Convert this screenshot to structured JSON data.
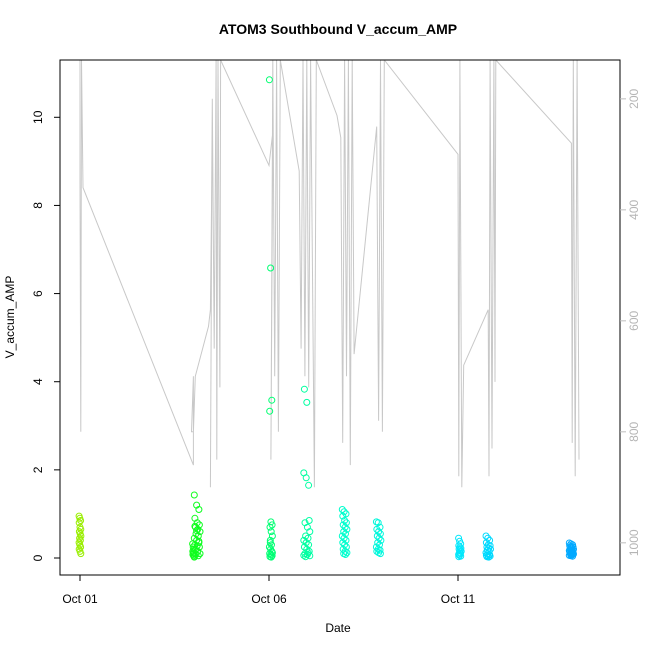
{
  "chart_data": {
    "type": "scatter",
    "title": "ATOM3 Southbound V_accum_AMP",
    "xlabel": "Date",
    "ylabel": "V_accum_AMP",
    "x_ticks": [
      "Oct 01",
      "Oct 06",
      "Oct 11"
    ],
    "x_tick_days": [
      1,
      6,
      11
    ],
    "xlim_days": [
      1,
      14.7
    ],
    "ylim": [
      0,
      11.3
    ],
    "y_ticks": [
      0,
      2,
      4,
      6,
      8,
      10
    ],
    "right_axis": {
      "ylim": [
        1058,
        130
      ],
      "ticks": [
        200,
        400,
        600,
        800,
        1000
      ],
      "inverted": true,
      "color": "#bdbdbd"
    },
    "grid": false,
    "legend": "none",
    "point_style": "open-circle",
    "point_color_gradient": [
      "#99ee00",
      "#00ff22",
      "#00ffcc",
      "#00e5ff",
      "#0099ff"
    ],
    "series": [
      {
        "type": "scatter",
        "clusters": [
          {
            "day": 1.0,
            "spread": 0.05,
            "y": [
              0.95,
              0.9,
              0.85,
              0.8,
              0.7,
              0.65,
              0.6,
              0.55,
              0.5,
              0.45,
              0.4,
              0.35,
              0.3,
              0.25,
              0.2,
              0.15,
              0.1
            ]
          },
          {
            "day": 4.0,
            "spread": 0.04,
            "y": [
              0.32,
              0.25,
              0.2,
              0.15,
              0.12,
              0.1,
              0.08,
              0.05,
              0.03
            ]
          },
          {
            "day": 4.1,
            "spread": 0.15,
            "y": [
              1.43,
              1.2,
              1.1,
              0.9,
              0.8,
              0.75,
              0.7,
              0.65,
              0.6,
              0.55,
              0.5,
              0.45,
              0.4,
              0.35,
              0.3,
              0.28,
              0.25,
              0.2,
              0.15,
              0.1,
              0.08,
              0.05,
              0.02,
              0.62,
              0.38,
              0.72
            ]
          },
          {
            "day": 6.05,
            "spread": 0.08,
            "y": [
              10.85,
              6.58,
              3.58,
              3.33,
              0.82,
              0.75,
              0.7,
              0.6,
              0.5,
              0.4,
              0.3,
              0.25,
              0.2,
              0.15,
              0.1,
              0.08,
              0.05,
              0.03,
              0.02,
              0.12,
              0.35
            ]
          },
          {
            "day": 7.0,
            "spread": 0.16,
            "y": [
              1.93,
              1.82,
              1.65,
              3.83,
              3.53,
              0.85,
              0.8,
              0.7,
              0.6,
              0.5,
              0.45,
              0.4,
              0.35,
              0.3,
              0.25,
              0.2,
              0.15,
              0.1,
              0.08,
              0.05,
              0.03,
              0.12,
              0.06
            ]
          },
          {
            "day": 8.0,
            "spread": 0.12,
            "y": [
              1.1,
              1.05,
              1.0,
              0.95,
              0.85,
              0.8,
              0.75,
              0.7,
              0.65,
              0.6,
              0.55,
              0.5,
              0.45,
              0.4,
              0.35,
              0.3,
              0.25,
              0.2,
              0.15,
              0.12,
              0.1,
              0.08
            ]
          },
          {
            "day": 8.9,
            "spread": 0.12,
            "y": [
              0.82,
              0.8,
              0.7,
              0.65,
              0.6,
              0.55,
              0.5,
              0.45,
              0.4,
              0.35,
              0.3,
              0.25,
              0.2,
              0.18,
              0.15,
              0.12,
              0.1
            ]
          },
          {
            "day": 11.05,
            "spread": 0.07,
            "y": [
              0.45,
              0.38,
              0.32,
              0.28,
              0.25,
              0.22,
              0.2,
              0.18,
              0.15,
              0.12,
              0.1,
              0.08,
              0.06,
              0.04,
              0.03
            ]
          },
          {
            "day": 11.8,
            "spread": 0.12,
            "y": [
              0.5,
              0.45,
              0.4,
              0.35,
              0.3,
              0.28,
              0.25,
              0.22,
              0.2,
              0.18,
              0.15,
              0.12,
              0.1,
              0.08,
              0.06,
              0.05,
              0.04,
              0.03,
              0.02
            ]
          },
          {
            "day": 14.0,
            "spread": 0.11,
            "y": [
              0.34,
              0.32,
              0.3,
              0.28,
              0.26,
              0.25,
              0.24,
              0.22,
              0.2,
              0.19,
              0.18,
              0.17,
              0.16,
              0.15,
              0.14,
              0.13,
              0.12,
              0.11,
              0.1,
              0.09,
              0.08,
              0.07,
              0.06,
              0.05,
              0.04
            ]
          }
        ]
      },
      {
        "type": "line",
        "color": "#c8c8c8",
        "axis": "right",
        "points": [
          [
            1.0,
            130
          ],
          [
            1.0,
            340
          ],
          [
            1.02,
            800
          ],
          [
            1.04,
            130
          ],
          [
            1.08,
            360
          ],
          [
            4.0,
            860
          ],
          [
            4.0,
            700
          ],
          [
            3.95,
            800
          ],
          [
            4.0,
            800
          ],
          [
            4.05,
            700
          ],
          [
            4.4,
            610
          ],
          [
            4.45,
            580
          ],
          [
            4.48,
            400
          ],
          [
            4.5,
            200
          ],
          [
            4.45,
            900
          ],
          [
            4.5,
            200
          ],
          [
            4.55,
            650
          ],
          [
            4.6,
            130
          ],
          [
            4.62,
            850
          ],
          [
            4.65,
            130
          ],
          [
            4.7,
            720
          ],
          [
            4.72,
            130
          ],
          [
            6.0,
            320
          ],
          [
            6.1,
            260
          ],
          [
            6.05,
            850
          ],
          [
            6.1,
            130
          ],
          [
            6.15,
            700
          ],
          [
            6.2,
            130
          ],
          [
            6.25,
            800
          ],
          [
            6.3,
            130
          ],
          [
            6.8,
            330
          ],
          [
            6.85,
            650
          ],
          [
            6.9,
            130
          ],
          [
            6.95,
            700
          ],
          [
            7.0,
            130
          ],
          [
            7.05,
            720
          ],
          [
            7.1,
            130
          ],
          [
            7.2,
            900
          ],
          [
            7.25,
            130
          ],
          [
            7.8,
            230
          ],
          [
            7.9,
            270
          ],
          [
            7.95,
            820
          ],
          [
            8.0,
            130
          ],
          [
            8.05,
            700
          ],
          [
            8.1,
            130
          ],
          [
            8.15,
            860
          ],
          [
            8.2,
            130
          ],
          [
            8.25,
            660
          ],
          [
            8.85,
            250
          ],
          [
            8.9,
            780
          ],
          [
            8.95,
            130
          ],
          [
            9.0,
            800
          ],
          [
            9.05,
            130
          ],
          [
            11.0,
            300
          ],
          [
            11.02,
            880
          ],
          [
            11.05,
            130
          ],
          [
            11.1,
            900
          ],
          [
            11.15,
            680
          ],
          [
            11.8,
            580
          ],
          [
            11.82,
            880
          ],
          [
            11.85,
            130
          ],
          [
            11.9,
            830
          ],
          [
            11.95,
            130
          ],
          [
            11.98,
            710
          ],
          [
            12.0,
            130
          ],
          [
            14.0,
            280
          ],
          [
            14.02,
            820
          ],
          [
            14.05,
            130
          ],
          [
            14.1,
            880
          ],
          [
            14.15,
            130
          ],
          [
            14.2,
            850
          ]
        ]
      }
    ]
  }
}
